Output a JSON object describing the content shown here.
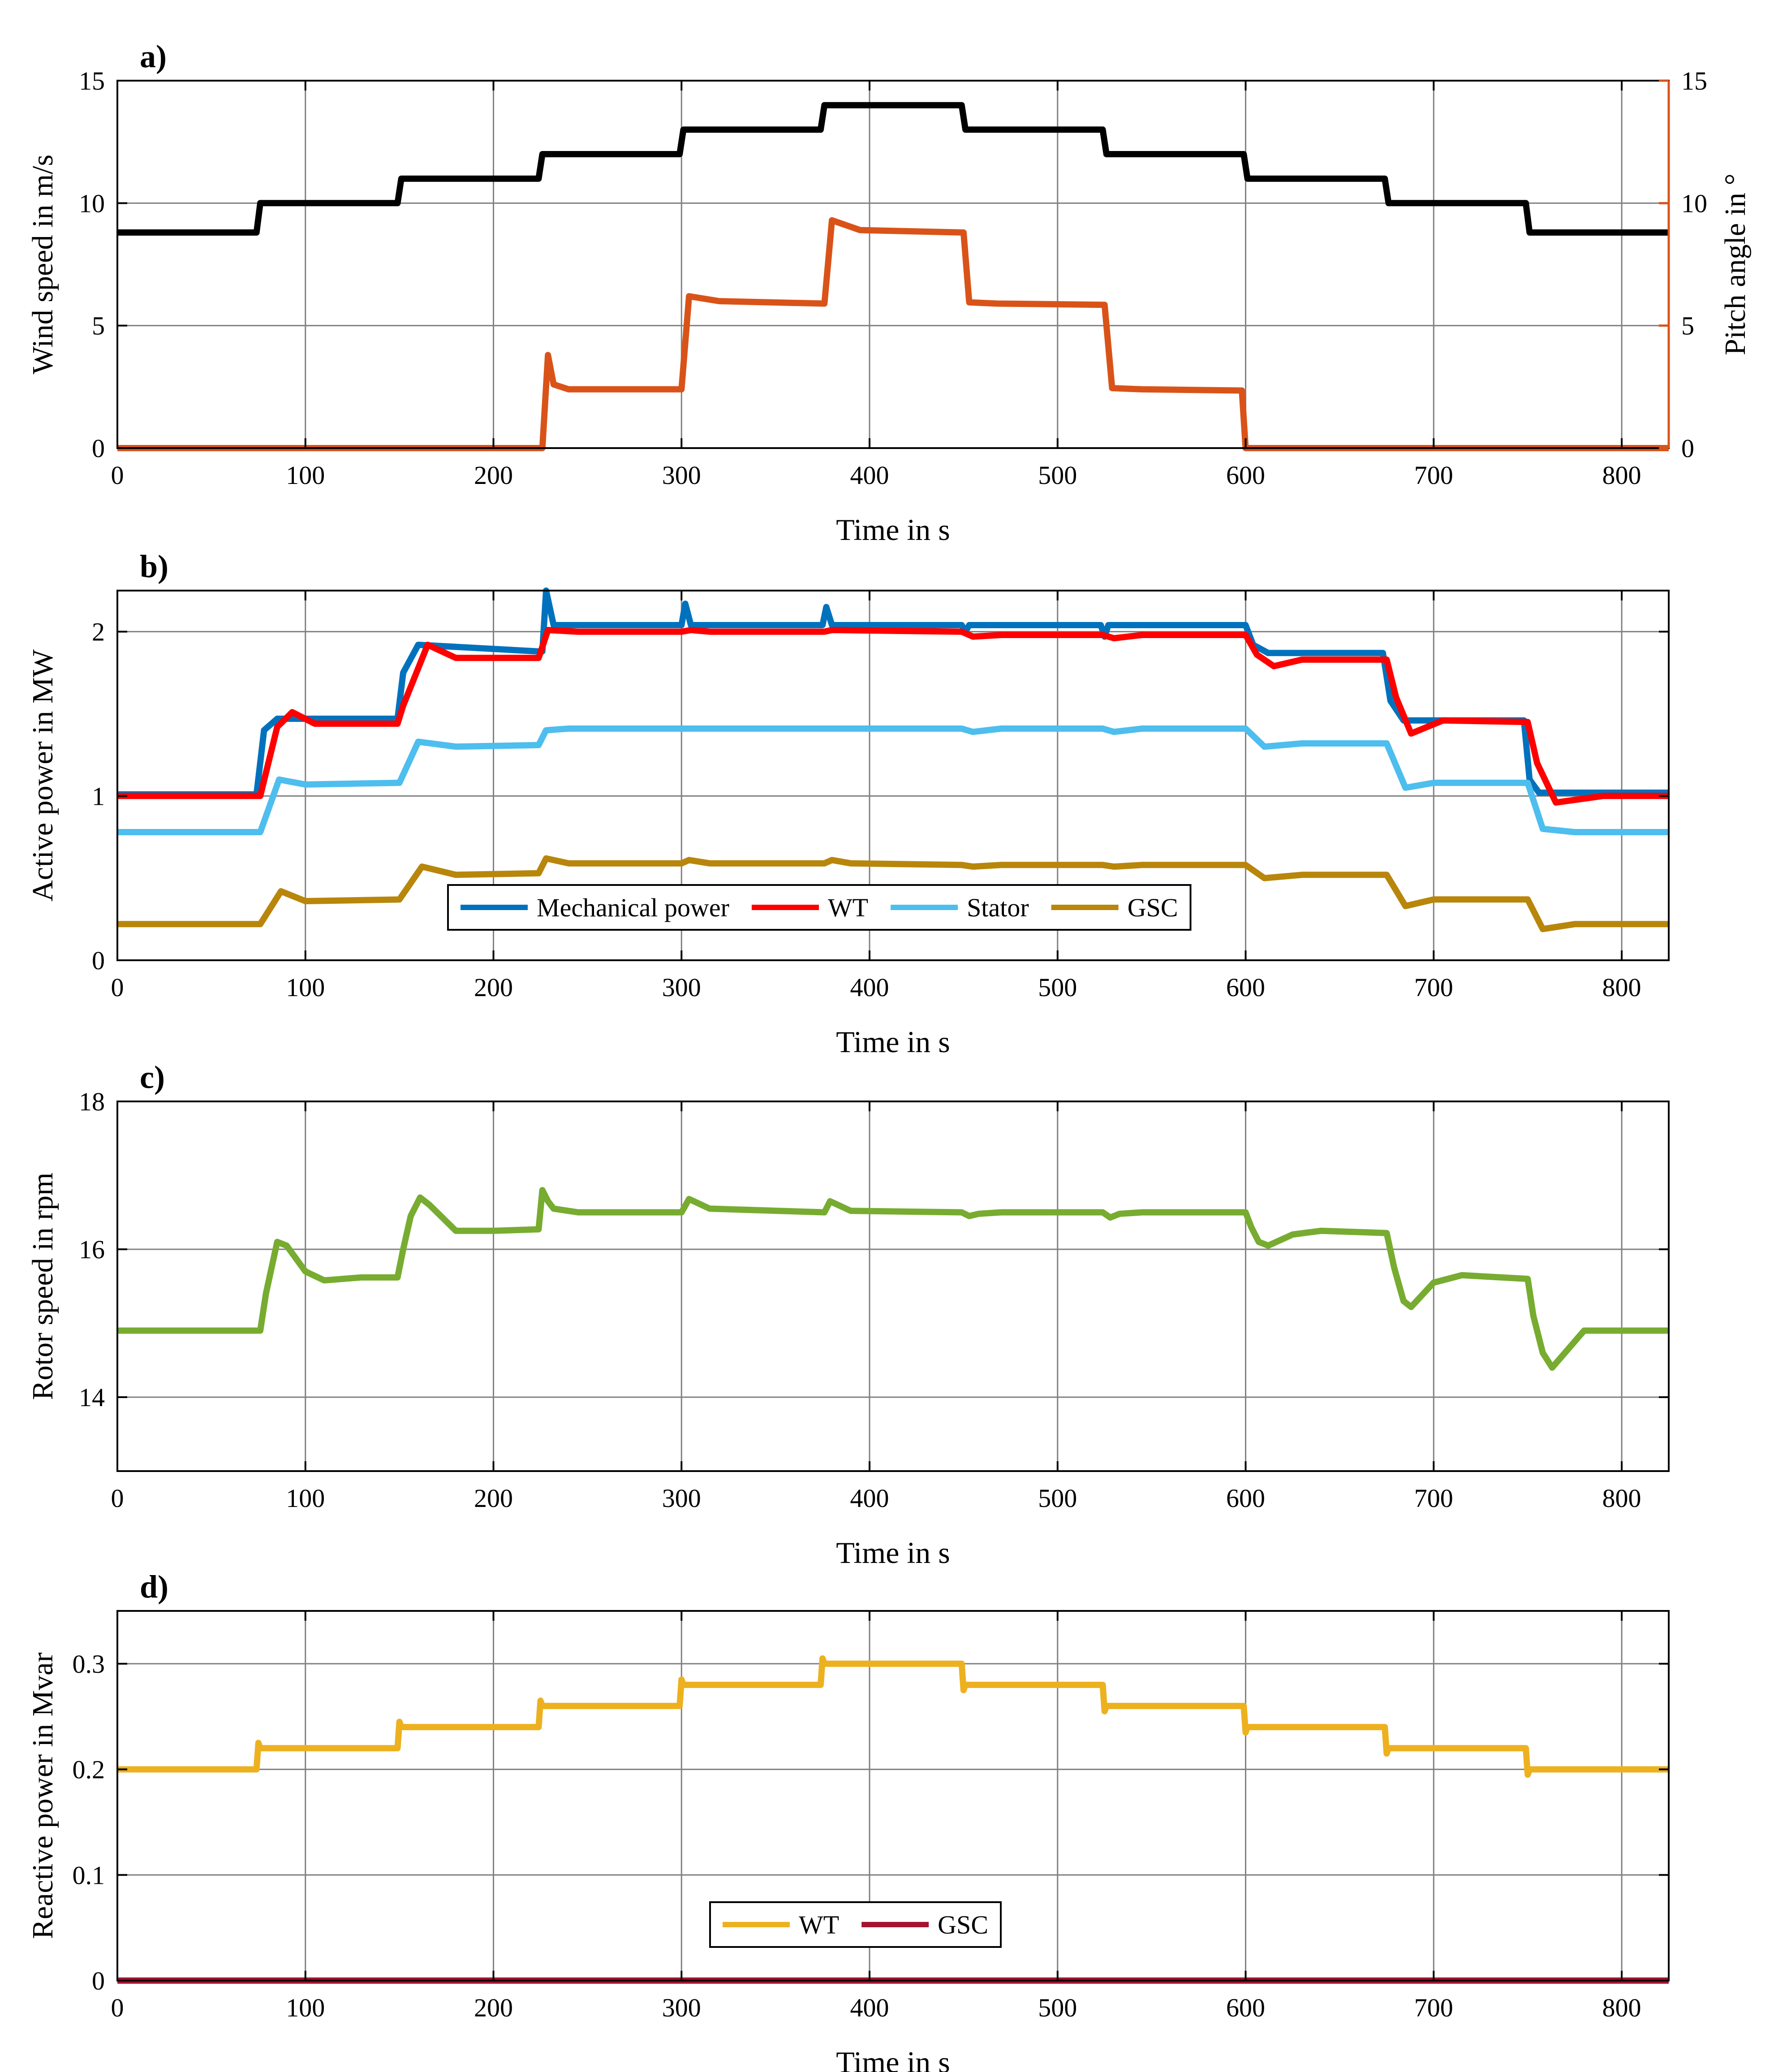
{
  "colors": {
    "wind": "#000000",
    "pitch": "#D95319",
    "mech": "#0072BD",
    "wt": "#FF0000",
    "stator": "#4DBEEE",
    "gsc": "#B8860B",
    "wt_reactive": "#EDB120",
    "gsc_reactive": "#A2142F",
    "grid": "#808080"
  },
  "chart_data": [
    {
      "panel": "a)",
      "type": "line",
      "xlabel": "Time in s",
      "ylabel": "Wind speed in m/s",
      "y2label": "Pitch angle in °",
      "xlim": [
        0,
        825
      ],
      "ylim": [
        0,
        15
      ],
      "y2lim": [
        0,
        15
      ],
      "xticks": [
        "0",
        "100",
        "200",
        "300",
        "400",
        "500",
        "600",
        "700",
        "800"
      ],
      "yticks": [
        "0",
        "5",
        "10",
        "15"
      ],
      "y2ticks": [
        "0",
        "5",
        "10",
        "15"
      ],
      "series": [
        {
          "name": "Wind speed",
          "axis": "left",
          "color_key": "wind",
          "x": [
            0,
            74,
            76,
            149,
            151,
            224,
            226,
            299,
            301,
            374,
            376,
            449,
            451,
            524,
            526,
            599,
            601,
            674,
            676,
            749,
            751,
            825
          ],
          "y": [
            8.8,
            8.8,
            10,
            10,
            11,
            11,
            12,
            12,
            13,
            13,
            14,
            14,
            13,
            13,
            12,
            12,
            11,
            11,
            10,
            10,
            8.8,
            8.8
          ]
        },
        {
          "name": "Pitch angle",
          "axis": "right",
          "color_key": "pitch",
          "x": [
            0,
            226,
            229,
            232,
            240,
            300,
            304,
            320,
            376,
            380,
            395,
            450,
            453,
            468,
            525,
            529,
            545,
            598,
            600,
            825
          ],
          "y": [
            0,
            0,
            3.8,
            2.6,
            2.4,
            2.4,
            6.2,
            6.0,
            5.9,
            9.3,
            8.9,
            8.8,
            5.95,
            5.9,
            5.85,
            2.45,
            2.4,
            2.35,
            0,
            0
          ]
        }
      ]
    },
    {
      "panel": "b)",
      "type": "line",
      "xlabel": "Time in s",
      "ylabel": "Active power in MW",
      "xlim": [
        0,
        825
      ],
      "ylim": [
        0,
        2.25
      ],
      "xticks": [
        "0",
        "100",
        "200",
        "300",
        "400",
        "500",
        "600",
        "700",
        "800"
      ],
      "yticks": [
        "0",
        "1",
        "2"
      ],
      "legend": [
        "Mechanical power",
        "WT",
        "Stator",
        "GSC"
      ],
      "legend_position": "bottom-center",
      "series": [
        {
          "name": "Mechanical power",
          "color_key": "mech",
          "x": [
            0,
            74,
            78,
            85,
            149,
            152,
            160,
            224,
            226,
            228,
            232,
            300,
            302,
            305,
            310,
            375,
            377,
            380,
            449,
            451,
            453,
            523,
            525,
            527,
            600,
            604,
            612,
            673,
            677,
            684,
            748,
            751,
            756,
            825
          ],
          "y": [
            1.01,
            1.01,
            1.4,
            1.47,
            1.47,
            1.75,
            1.92,
            1.88,
            1.88,
            2.25,
            2.04,
            2.04,
            2.17,
            2.04,
            2.04,
            2.04,
            2.15,
            2.04,
            2.04,
            2.0,
            2.04,
            2.04,
            1.97,
            2.04,
            2.04,
            1.92,
            1.87,
            1.87,
            1.58,
            1.46,
            1.46,
            1.1,
            1.02,
            1.02
          ]
        },
        {
          "name": "WT",
          "color_key": "wt",
          "x": [
            0,
            76,
            85,
            93,
            105,
            149,
            152,
            165,
            180,
            224,
            229,
            245,
            300,
            305,
            315,
            376,
            380,
            449,
            455,
            470,
            524,
            530,
            545,
            600,
            606,
            615,
            630,
            675,
            680,
            688,
            705,
            750,
            755,
            765,
            790,
            825
          ],
          "y": [
            1.0,
            1.0,
            1.42,
            1.51,
            1.44,
            1.44,
            1.55,
            1.92,
            1.84,
            1.84,
            2.01,
            2.0,
            2.0,
            2.01,
            2.0,
            2.0,
            2.01,
            2.0,
            1.97,
            1.98,
            1.98,
            1.96,
            1.98,
            1.98,
            1.86,
            1.79,
            1.83,
            1.83,
            1.6,
            1.38,
            1.46,
            1.45,
            1.2,
            0.96,
            1.0,
            1.0
          ]
        },
        {
          "name": "Stator",
          "color_key": "stator",
          "x": [
            0,
            76,
            86,
            100,
            150,
            160,
            180,
            224,
            228,
            240,
            300,
            376,
            449,
            455,
            470,
            524,
            530,
            545,
            600,
            610,
            630,
            675,
            685,
            700,
            750,
            758,
            775,
            825
          ],
          "y": [
            0.78,
            0.78,
            1.1,
            1.07,
            1.08,
            1.33,
            1.3,
            1.31,
            1.4,
            1.41,
            1.41,
            1.41,
            1.41,
            1.39,
            1.41,
            1.41,
            1.39,
            1.41,
            1.41,
            1.3,
            1.32,
            1.32,
            1.05,
            1.08,
            1.08,
            0.8,
            0.78,
            0.78
          ]
        },
        {
          "name": "GSC",
          "color_key": "gsc",
          "x": [
            0,
            76,
            87,
            100,
            150,
            162,
            180,
            224,
            228,
            240,
            300,
            304,
            315,
            376,
            380,
            390,
            449,
            455,
            470,
            524,
            530,
            545,
            600,
            610,
            630,
            675,
            685,
            700,
            750,
            758,
            775,
            825
          ],
          "y": [
            0.22,
            0.22,
            0.42,
            0.36,
            0.37,
            0.57,
            0.52,
            0.53,
            0.62,
            0.59,
            0.59,
            0.61,
            0.59,
            0.59,
            0.61,
            0.59,
            0.58,
            0.57,
            0.58,
            0.58,
            0.57,
            0.58,
            0.58,
            0.5,
            0.52,
            0.52,
            0.33,
            0.37,
            0.37,
            0.19,
            0.22,
            0.22
          ]
        }
      ]
    },
    {
      "panel": "c)",
      "type": "line",
      "xlabel": "Time in s",
      "ylabel": "Rotor speed in rpm",
      "xlim": [
        0,
        825
      ],
      "ylim": [
        13,
        18
      ],
      "xticks": [
        "0",
        "100",
        "200",
        "300",
        "400",
        "500",
        "600",
        "700",
        "800"
      ],
      "yticks": [
        "14",
        "16",
        "18"
      ],
      "series": [
        {
          "name": "Rotor speed",
          "color_key": "wind_green",
          "color": "#77AC30",
          "x": [
            0,
            76,
            79,
            85,
            90,
            100,
            110,
            130,
            149,
            152,
            156,
            161,
            166,
            180,
            200,
            224,
            226,
            229,
            232,
            245,
            300,
            304,
            315,
            376,
            379,
            390,
            449,
            453,
            458,
            470,
            524,
            528,
            533,
            545,
            600,
            603,
            607,
            612,
            625,
            640,
            675,
            679,
            684,
            688,
            700,
            715,
            750,
            753,
            758,
            763,
            780,
            825
          ],
          "y": [
            14.9,
            14.9,
            15.4,
            16.1,
            16.05,
            15.7,
            15.58,
            15.62,
            15.62,
            16.0,
            16.45,
            16.7,
            16.6,
            16.25,
            16.25,
            16.27,
            16.8,
            16.65,
            16.55,
            16.5,
            16.5,
            16.68,
            16.55,
            16.5,
            16.65,
            16.52,
            16.5,
            16.45,
            16.48,
            16.5,
            16.5,
            16.43,
            16.48,
            16.5,
            16.5,
            16.3,
            16.1,
            16.05,
            16.2,
            16.25,
            16.22,
            15.75,
            15.3,
            15.22,
            15.55,
            15.65,
            15.6,
            15.1,
            14.6,
            14.4,
            14.9,
            14.9
          ]
        }
      ]
    },
    {
      "panel": "d)",
      "type": "line",
      "xlabel": "Time in s",
      "ylabel": "Reactive power in Mvar",
      "xlim": [
        0,
        825
      ],
      "ylim": [
        0,
        0.35
      ],
      "xticks": [
        "0",
        "100",
        "200",
        "300",
        "400",
        "500",
        "600",
        "700",
        "800"
      ],
      "yticks": [
        "0",
        "0.1",
        "0.2",
        "0.3"
      ],
      "legend": [
        "WT",
        "GSC"
      ],
      "legend_position": "bottom-center",
      "series": [
        {
          "name": "WT",
          "color_key": "wt_reactive",
          "x": [
            0,
            74,
            75,
            76,
            149,
            150,
            151,
            224,
            225,
            226,
            299,
            300,
            301,
            374,
            375,
            376,
            449,
            450,
            451,
            524,
            525,
            526,
            599,
            600,
            601,
            674,
            675,
            676,
            749,
            750,
            751,
            825
          ],
          "y": [
            0.2,
            0.2,
            0.225,
            0.22,
            0.22,
            0.245,
            0.24,
            0.24,
            0.265,
            0.26,
            0.26,
            0.285,
            0.28,
            0.28,
            0.305,
            0.3,
            0.3,
            0.275,
            0.28,
            0.28,
            0.255,
            0.26,
            0.26,
            0.235,
            0.24,
            0.24,
            0.215,
            0.22,
            0.22,
            0.195,
            0.2,
            0.2
          ]
        },
        {
          "name": "GSC",
          "color_key": "gsc_reactive",
          "x": [
            0,
            825
          ],
          "y": [
            0,
            0
          ]
        }
      ]
    }
  ]
}
